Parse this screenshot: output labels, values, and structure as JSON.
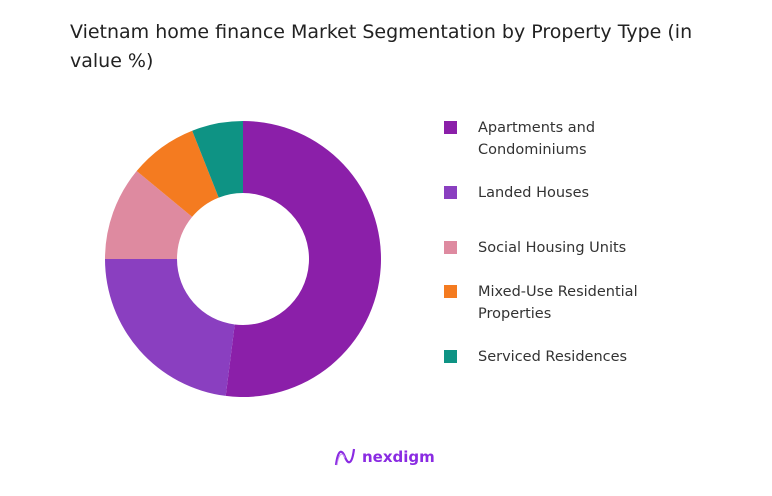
{
  "chart_data": {
    "type": "pie",
    "variant": "donut",
    "title": "Vietnam home finance Market Segmentation by Property Type (in value %)",
    "categories": [
      "Apartments and Condominiums",
      "Landed Houses",
      "Social Housing Units",
      "Mixed-Use Residential Properties",
      "Serviced Residences"
    ],
    "values": [
      52,
      23,
      11,
      8,
      6
    ],
    "colors": [
      "#8B1FA9",
      "#8A3FC0",
      "#DE8AA0",
      "#F47B20",
      "#0E9384"
    ],
    "legend_position": "right"
  },
  "branding": {
    "logo_text": "nexdigm"
  }
}
